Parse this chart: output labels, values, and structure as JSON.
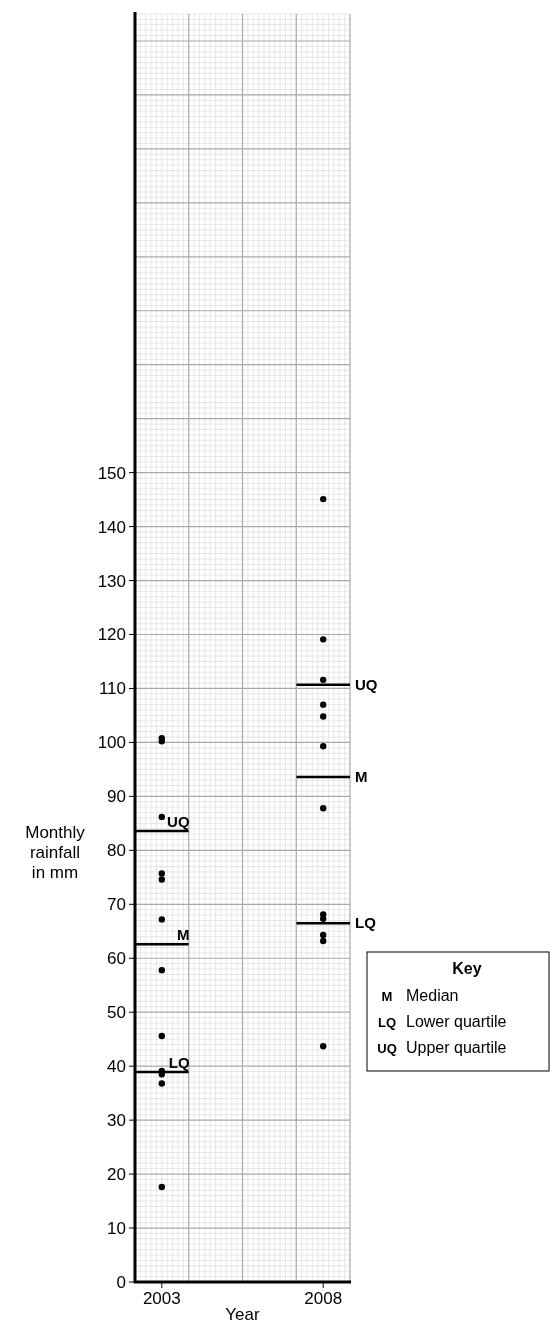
{
  "chart_data": {
    "type": "scatter",
    "xlabel": "Year",
    "ylabel": "Monthly rainfall in mm",
    "xlim": [
      2002.17,
      2008.83
    ],
    "xticks": [
      2003,
      2008
    ],
    "ylim": [
      0,
      235
    ],
    "yticks": [
      0,
      10,
      20,
      30,
      40,
      50,
      60,
      70,
      80,
      90,
      100,
      110,
      120,
      130,
      140,
      150
    ],
    "grid": true,
    "series": [
      {
        "color": "#000000",
        "marker": "circle",
        "x": [
          2003,
          2003,
          2003,
          2003,
          2003,
          2003,
          2003,
          2003,
          2003,
          2003,
          2003,
          2003,
          2008,
          2008,
          2008,
          2008,
          2008,
          2008,
          2008,
          2008,
          2008,
          2008,
          2008,
          2008
        ],
        "values": [
          100.8,
          100.2,
          86.2,
          75.7,
          74.6,
          67.2,
          57.8,
          45.6,
          39.1,
          38.5,
          36.8,
          17.6,
          145.1,
          119.1,
          111.6,
          107.0,
          104.8,
          99.3,
          87.8,
          68.1,
          67.3,
          64.3,
          63.2,
          43.7
        ]
      },
      {
        "type": "line",
        "name": "UQ",
        "marker": "none",
        "color": "#000000",
        "x": [
          2002.17,
          2003.83,
          null,
          2007.17,
          2008.83
        ],
        "values": [
          83.6,
          83.6,
          null,
          110.7,
          110.7
        ]
      },
      {
        "type": "line",
        "name": "M",
        "marker": "none",
        "color": "#000000",
        "x": [
          2002.17,
          2003.83,
          null,
          2007.17,
          2008.83
        ],
        "values": [
          62.6,
          62.6,
          null,
          93.6,
          93.6
        ]
      },
      {
        "type": "line",
        "name": "LQ",
        "marker": "none",
        "color": "#000000",
        "x": [
          2002.17,
          2003.83,
          null,
          2007.17,
          2008.83
        ],
        "values": [
          38.9,
          38.9,
          null,
          66.5,
          66.5
        ]
      }
    ],
    "annotations": [
      "Key",
      "M",
      "Median",
      "LQ",
      "Lower quartile",
      "UQ",
      "Upper quartile"
    ]
  }
}
